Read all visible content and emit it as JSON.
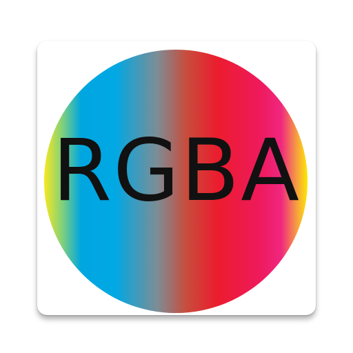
{
  "logo": {
    "text": "RGBA"
  },
  "colors": {
    "tile_background": "#ffffff",
    "text": "#111111",
    "gradient_stops": [
      "#f7e81e",
      "#7fd07d",
      "#00a6e0",
      "#7d8d95",
      "#ec1c2e",
      "#f0277f",
      "#fde800"
    ]
  }
}
